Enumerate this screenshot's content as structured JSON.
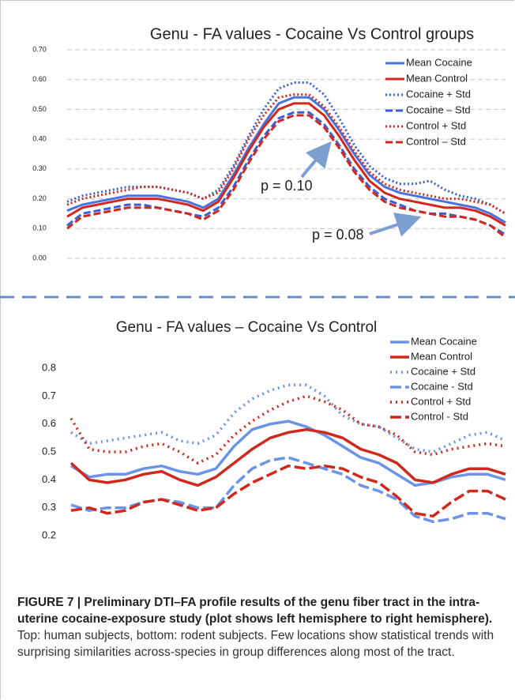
{
  "chart_data": [
    {
      "type": "line",
      "title": "Genu - FA values - Cocaine Vs Control groups",
      "ylim": [
        0,
        0.7
      ],
      "yticks": [
        {
          "value": 0,
          "label": "0.00"
        },
        {
          "value": 0.1,
          "label": "0.10"
        },
        {
          "value": 0.2,
          "label": "0.20"
        },
        {
          "value": 0.3,
          "label": "0.30"
        },
        {
          "value": 0.4,
          "label": "0.40"
        },
        {
          "value": 0.5,
          "label": "0.50"
        },
        {
          "value": 0.6,
          "label": "0.60"
        },
        {
          "value": 0.7,
          "label": "0.70"
        }
      ],
      "grid": true,
      "legend": "upper right",
      "annotations": [
        "p = 0.10",
        "p = 0.08"
      ],
      "series": [
        {
          "name": "Mean Cocaine",
          "color": "#4a72e0",
          "dash": "solid",
          "values": [
            0.16,
            0.18,
            0.19,
            0.2,
            0.21,
            0.21,
            0.21,
            0.2,
            0.19,
            0.17,
            0.2,
            0.28,
            0.37,
            0.45,
            0.52,
            0.54,
            0.54,
            0.5,
            0.43,
            0.35,
            0.28,
            0.24,
            0.22,
            0.21,
            0.2,
            0.19,
            0.18,
            0.17,
            0.15,
            0.12
          ]
        },
        {
          "name": "Mean Control",
          "color": "#d0281c",
          "dash": "solid",
          "values": [
            0.14,
            0.17,
            0.18,
            0.19,
            0.2,
            0.2,
            0.2,
            0.19,
            0.18,
            0.16,
            0.19,
            0.27,
            0.36,
            0.44,
            0.5,
            0.52,
            0.52,
            0.48,
            0.41,
            0.33,
            0.26,
            0.22,
            0.2,
            0.19,
            0.18,
            0.17,
            0.17,
            0.16,
            0.14,
            0.11
          ]
        },
        {
          "name": "Cocaine + Std",
          "color": "#3a5fd8",
          "dash": "dot",
          "values": [
            0.19,
            0.21,
            0.22,
            0.23,
            0.24,
            0.24,
            0.24,
            0.23,
            0.22,
            0.2,
            0.23,
            0.31,
            0.41,
            0.5,
            0.57,
            0.59,
            0.59,
            0.55,
            0.47,
            0.38,
            0.31,
            0.27,
            0.25,
            0.25,
            0.26,
            0.23,
            0.21,
            0.2,
            0.18,
            0.15
          ]
        },
        {
          "name": "Cocaine – Std",
          "color": "#3a5fd8",
          "dash": "dash",
          "values": [
            0.11,
            0.15,
            0.16,
            0.17,
            0.18,
            0.18,
            0.17,
            0.16,
            0.15,
            0.14,
            0.17,
            0.24,
            0.33,
            0.41,
            0.47,
            0.49,
            0.49,
            0.45,
            0.38,
            0.3,
            0.24,
            0.2,
            0.18,
            0.16,
            0.15,
            0.15,
            0.14,
            0.13,
            0.11,
            0.08
          ]
        },
        {
          "name": "Control + Std",
          "color": "#d0281c",
          "dash": "dot",
          "values": [
            0.18,
            0.2,
            0.21,
            0.22,
            0.23,
            0.24,
            0.24,
            0.23,
            0.22,
            0.2,
            0.22,
            0.3,
            0.4,
            0.48,
            0.54,
            0.55,
            0.55,
            0.51,
            0.44,
            0.36,
            0.29,
            0.25,
            0.23,
            0.22,
            0.21,
            0.2,
            0.2,
            0.19,
            0.18,
            0.15
          ]
        },
        {
          "name": "Control – Std",
          "color": "#d0281c",
          "dash": "dash",
          "values": [
            0.1,
            0.14,
            0.15,
            0.16,
            0.17,
            0.17,
            0.17,
            0.16,
            0.15,
            0.13,
            0.16,
            0.23,
            0.32,
            0.4,
            0.46,
            0.48,
            0.48,
            0.44,
            0.37,
            0.29,
            0.23,
            0.19,
            0.17,
            0.16,
            0.15,
            0.14,
            0.14,
            0.13,
            0.11,
            0.07
          ]
        }
      ]
    },
    {
      "type": "line",
      "title": "Genu - FA values – Cocaine Vs Control",
      "ylim": [
        0.2,
        0.8
      ],
      "yticks": [
        0.2,
        0.3,
        0.4,
        0.5,
        0.6,
        0.7,
        0.8
      ],
      "grid": false,
      "legend": "upper right",
      "series": [
        {
          "name": "Mean Cocaine",
          "color": "#6b94e6",
          "dash": "solid",
          "values": [
            0.45,
            0.41,
            0.42,
            0.42,
            0.44,
            0.45,
            0.43,
            0.42,
            0.44,
            0.52,
            0.58,
            0.6,
            0.61,
            0.59,
            0.56,
            0.52,
            0.48,
            0.46,
            0.42,
            0.38,
            0.39,
            0.41,
            0.42,
            0.42,
            0.4
          ]
        },
        {
          "name": "Mean Control",
          "color": "#d0281c",
          "dash": "solid",
          "values": [
            0.46,
            0.4,
            0.39,
            0.4,
            0.42,
            0.43,
            0.4,
            0.38,
            0.41,
            0.46,
            0.51,
            0.55,
            0.57,
            0.58,
            0.57,
            0.55,
            0.51,
            0.49,
            0.46,
            0.4,
            0.39,
            0.42,
            0.44,
            0.44,
            0.42
          ]
        },
        {
          "name": "Cocaine + Std",
          "color": "#6b94e6",
          "dash": "dot",
          "values": [
            0.57,
            0.53,
            0.54,
            0.55,
            0.56,
            0.57,
            0.54,
            0.53,
            0.56,
            0.64,
            0.69,
            0.72,
            0.74,
            0.74,
            0.7,
            0.63,
            0.6,
            0.59,
            0.55,
            0.51,
            0.5,
            0.53,
            0.56,
            0.57,
            0.54
          ]
        },
        {
          "name": "Cocaine - Std",
          "color": "#6b94e6",
          "dash": "dash",
          "values": [
            0.31,
            0.29,
            0.3,
            0.3,
            0.32,
            0.33,
            0.32,
            0.3,
            0.3,
            0.38,
            0.44,
            0.47,
            0.48,
            0.46,
            0.44,
            0.42,
            0.38,
            0.36,
            0.33,
            0.27,
            0.25,
            0.26,
            0.28,
            0.28,
            0.26
          ]
        },
        {
          "name": "Control + Std",
          "color": "#d0281c",
          "dash": "dot",
          "values": [
            0.62,
            0.51,
            0.5,
            0.5,
            0.52,
            0.53,
            0.5,
            0.46,
            0.49,
            0.56,
            0.61,
            0.65,
            0.68,
            0.7,
            0.68,
            0.65,
            0.6,
            0.59,
            0.56,
            0.5,
            0.49,
            0.51,
            0.52,
            0.53,
            0.52
          ]
        },
        {
          "name": "Control - Std",
          "color": "#d0281c",
          "dash": "dash",
          "values": [
            0.29,
            0.3,
            0.28,
            0.29,
            0.32,
            0.33,
            0.31,
            0.29,
            0.3,
            0.35,
            0.39,
            0.42,
            0.45,
            0.44,
            0.45,
            0.44,
            0.41,
            0.39,
            0.34,
            0.28,
            0.27,
            0.32,
            0.36,
            0.36,
            0.33
          ]
        }
      ]
    }
  ],
  "caption": {
    "bold": "FIGURE 7 | Preliminary DTI–FA profile results of the genu fiber tract in the intra-uterine cocaine-exposure study (plot shows left hemisphere to right hemisphere).",
    "text": "Top: human subjects, bottom: rodent subjects. Few locations show statistical trends with surprising similarities across-species in group differences along most of the tract."
  }
}
